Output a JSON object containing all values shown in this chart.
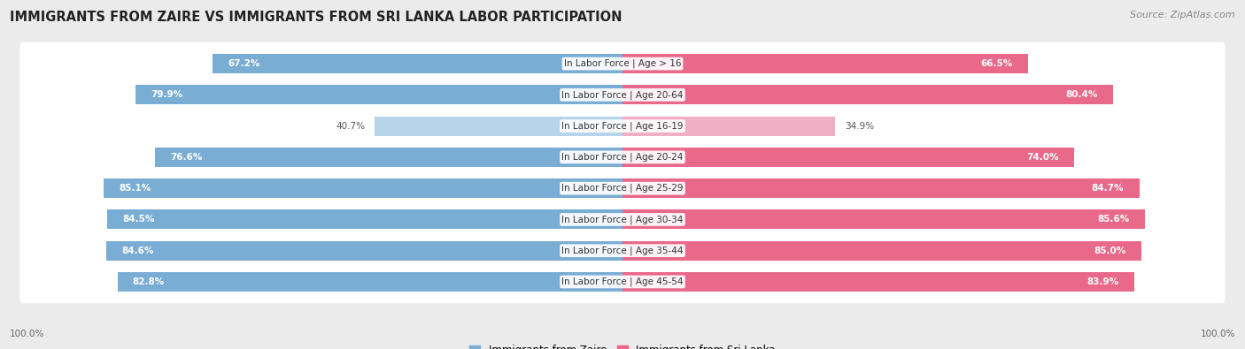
{
  "title": "IMMIGRANTS FROM ZAIRE VS IMMIGRANTS FROM SRI LANKA LABOR PARTICIPATION",
  "source": "Source: ZipAtlas.com",
  "categories": [
    "In Labor Force | Age > 16",
    "In Labor Force | Age 20-64",
    "In Labor Force | Age 16-19",
    "In Labor Force | Age 20-24",
    "In Labor Force | Age 25-29",
    "In Labor Force | Age 30-34",
    "In Labor Force | Age 35-44",
    "In Labor Force | Age 45-54"
  ],
  "zaire_values": [
    67.2,
    79.9,
    40.7,
    76.6,
    85.1,
    84.5,
    84.6,
    82.8
  ],
  "srilanka_values": [
    66.5,
    80.4,
    34.9,
    74.0,
    84.7,
    85.6,
    85.0,
    83.9
  ],
  "zaire_color": "#7aadd4",
  "zaire_color_light": "#b8d4ea",
  "srilanka_color": "#e8698a",
  "srilanka_color_light": "#f0afc5",
  "label_zaire": "Immigrants from Zaire",
  "label_srilanka": "Immigrants from Sri Lanka",
  "bar_height": 0.62,
  "max_value": 100.0,
  "bg_color": "#ebebeb",
  "row_bg_color": "#ffffff",
  "title_fontsize": 10.5,
  "source_fontsize": 8,
  "cat_fontsize": 7.5,
  "value_fontsize": 7.5,
  "legend_fontsize": 8.5,
  "footer_value": "100.0%"
}
